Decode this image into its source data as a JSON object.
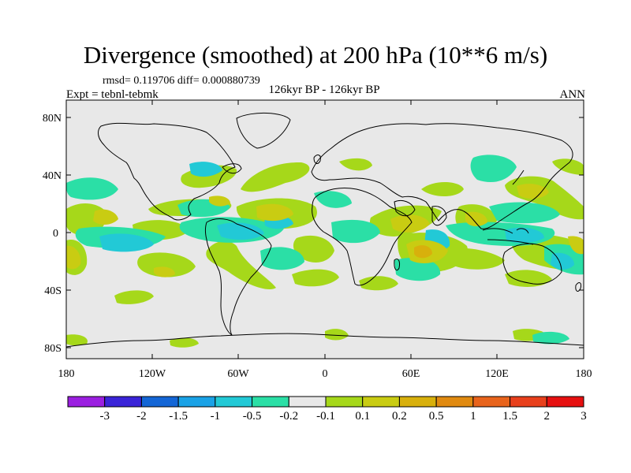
{
  "header": {
    "title": "Divergence (smoothed) at 200 hPa (10**6 m/s)",
    "stats": "rmsd= 0.119706 diff= 0.000880739",
    "experiment": "Expt = tebnl-tebmk",
    "period": "126kyr BP - 126kyr BP",
    "season": "ANN"
  },
  "axes": {
    "lat_ticks": [
      "80N",
      "40N",
      "0",
      "40S",
      "80S"
    ],
    "lon_ticks": [
      "180",
      "120W",
      "60W",
      "0",
      "60E",
      "120E",
      "180"
    ]
  },
  "colorbar": {
    "colors": [
      "#9b1fe0",
      "#3a24d8",
      "#1466d6",
      "#1aa2e6",
      "#22c9d6",
      "#2bdfa6",
      "#e8e8e8",
      "#a6d81a",
      "#c9cc12",
      "#d8b00c",
      "#e08a10",
      "#e8641c",
      "#e8401c",
      "#e61010"
    ],
    "labels": [
      "-3",
      "-2",
      "-1.5",
      "-1",
      "-0.5",
      "-0.2",
      "-0.1",
      "0.1",
      "0.2",
      "0.5",
      "1",
      "1.5",
      "2",
      "3"
    ]
  },
  "field_colors": {
    "background": "#e8e8e8",
    "green_pos": "#a6d81a",
    "yellow_pos": "#c9cc12",
    "orange_pos": "#d8b00c",
    "strong_pos": "#e08a10",
    "teal_neg": "#2bdfa6",
    "cyan_neg": "#22c9d6"
  },
  "continents": [
    "north-america",
    "south-america",
    "greenland",
    "europe",
    "africa",
    "asia",
    "australia",
    "antarctica"
  ]
}
